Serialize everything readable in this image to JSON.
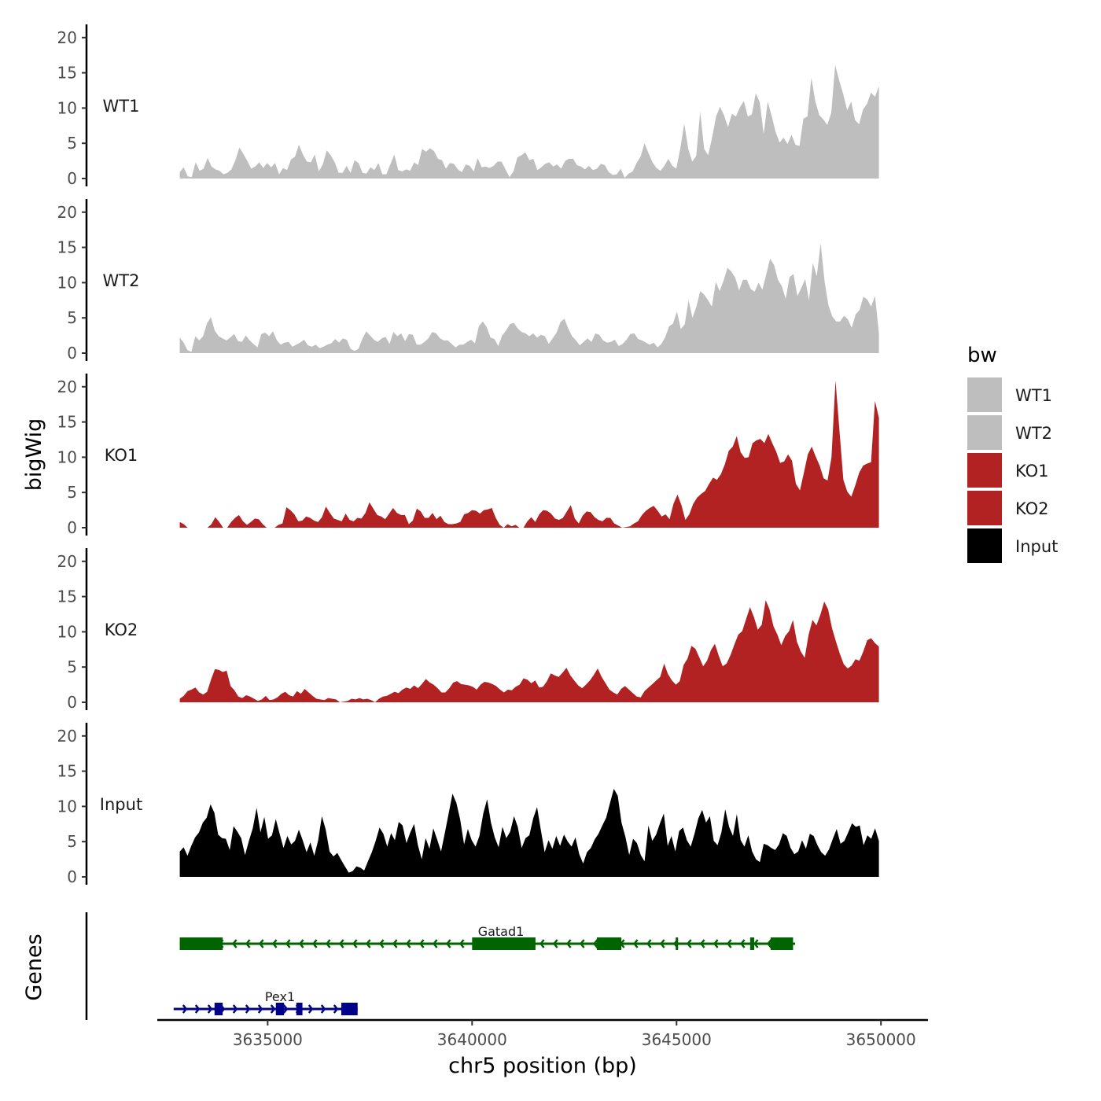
{
  "chart_data": {
    "type": "area",
    "title": "",
    "ylabel": "bigWig",
    "gene_track_label": "Genes",
    "xlabel": "chr5 position (bp)",
    "xlim": [
      3632300,
      3651150
    ],
    "x_ticks": [
      3635000,
      3640000,
      3645000,
      3650000
    ],
    "x_tick_labels": [
      "3635000",
      "3640000",
      "3645000",
      "3650000"
    ],
    "ylim": [
      0,
      21
    ],
    "y_ticks": [
      0,
      5,
      10,
      15,
      20
    ],
    "y_tick_labels": [
      "0",
      "5",
      "10",
      "15",
      "20"
    ],
    "signal_range": [
      3632850,
      3649950
    ],
    "tracks": [
      {
        "name": "WT1",
        "label": "WT1",
        "color": "#bebebe",
        "values": [
          0.9,
          1.6,
          0.3,
          0.2,
          2.3,
          1.1,
          1.4,
          2.9,
          1.7,
          1.3,
          1.1,
          0.6,
          0.8,
          1.3,
          2.6,
          4.4,
          3.5,
          2.5,
          1.4,
          1.7,
          2.3,
          1.5,
          2.2,
          1.6,
          2.2,
          0.6,
          1.5,
          1.2,
          2.7,
          3.1,
          4.8,
          3.4,
          2.4,
          2.3,
          3.4,
          1.0,
          2.0,
          4.0,
          3.3,
          2.3,
          0.8,
          0.8,
          1.8,
          0.8,
          2.6,
          2.2,
          0.8,
          0.7,
          1.6,
          1.2,
          2.2,
          0.6,
          0.6,
          2.0,
          3.4,
          1.2,
          1.0,
          1.3,
          1.1,
          2.3,
          1.9,
          4.2,
          3.8,
          4.3,
          3.9,
          2.8,
          2.6,
          1.4,
          2.2,
          2.1,
          1.3,
          0.9,
          2.0,
          1.8,
          1.0,
          2.9,
          1.6,
          1.7,
          1.5,
          1.8,
          2.4,
          2.4,
          1.3,
          0.2,
          1.0,
          3.0,
          3.3,
          3.7,
          2.6,
          2.8,
          1.2,
          1.6,
          2.1,
          2.3,
          1.7,
          2.0,
          1.4,
          2.5,
          2.8,
          2.8,
          1.9,
          1.7,
          1.3,
          1.8,
          1.2,
          1.4,
          2.1,
          1.9,
          0.9,
          0.5,
          0.6,
          1.4,
          0.1,
          0.7,
          1.0,
          2.2,
          3.1,
          5.0,
          3.6,
          2.3,
          1.5,
          1.1,
          1.8,
          2.8,
          1.8,
          1.4,
          4.3,
          7.8,
          4.2,
          2.4,
          3.2,
          9.5,
          4.2,
          3.3,
          5.8,
          8.8,
          10.2,
          9.0,
          7.3,
          9.2,
          8.8,
          10.1,
          11.0,
          8.8,
          9.1,
          12.1,
          10.8,
          6.3,
          10.9,
          8.9,
          6.6,
          5.1,
          5.8,
          4.9,
          6.2,
          4.8,
          4.6,
          8.5,
          8.8,
          14.3,
          10.9,
          9.0,
          8.4,
          7.6,
          9.3,
          16.1,
          13.9,
          12.0,
          9.7,
          10.9,
          8.3,
          7.7,
          9.8,
          10.6,
          12.2,
          11.6,
          13.1
        ]
      },
      {
        "name": "WT2",
        "label": "WT2",
        "color": "#bebebe",
        "values": [
          2.2,
          1.5,
          0.4,
          0.2,
          2.4,
          1.8,
          2.4,
          4.2,
          5.1,
          3.2,
          2.4,
          2.1,
          1.8,
          2.2,
          2.7,
          1.7,
          1.6,
          2.5,
          1.8,
          1.3,
          0.8,
          2.7,
          2.9,
          2.4,
          3.1,
          1.8,
          1.2,
          1.5,
          1.6,
          0.9,
          1.2,
          1.5,
          1.9,
          1.1,
          0.9,
          1.2,
          0.7,
          0.9,
          1.2,
          1.4,
          2.0,
          1.5,
          2.1,
          1.9,
          0.6,
          0.3,
          0.6,
          2.0,
          3.1,
          2.5,
          1.9,
          1.6,
          2.1,
          2.3,
          1.3,
          3.0,
          2.4,
          2.8,
          1.7,
          2.7,
          2.6,
          1.2,
          1.2,
          1.6,
          2.1,
          3.0,
          2.8,
          2.1,
          1.8,
          1.8,
          1.3,
          0.8,
          1.2,
          1.2,
          1.6,
          1.9,
          1.4,
          3.8,
          4.5,
          3.7,
          2.2,
          2.0,
          1.0,
          2.5,
          3.2,
          4.1,
          4.3,
          3.5,
          3.0,
          2.8,
          2.4,
          2.8,
          2.2,
          2.6,
          2.4,
          1.3,
          2.1,
          2.9,
          4.4,
          4.9,
          3.5,
          2.4,
          1.8,
          1.1,
          1.6,
          2.1,
          1.6,
          2.8,
          2.6,
          1.8,
          1.5,
          1.6,
          1.9,
          1.0,
          1.3,
          1.9,
          2.7,
          2.8,
          2.0,
          1.8,
          1.5,
          1.2,
          1.5,
          0.8,
          1.3,
          2.3,
          3.8,
          4.2,
          5.9,
          3.4,
          4.1,
          7.5,
          5.0,
          6.6,
          8.8,
          8.3,
          7.5,
          6.6,
          10.1,
          8.8,
          10.3,
          12.1,
          11.6,
          10.7,
          8.9,
          10.4,
          10.4,
          9.1,
          8.7,
          10.0,
          9.0,
          11.2,
          13.4,
          12.5,
          10.4,
          9.5,
          7.7,
          10.8,
          11.2,
          8.1,
          9.2,
          10.5,
          7.5,
          12.8,
          10.9,
          15.6,
          10.2,
          6.8,
          5.2,
          4.5,
          4.5,
          5.3,
          4.8,
          3.6,
          5.5,
          6.1,
          8.0,
          7.6,
          6.6,
          8.1,
          2.8
        ]
      },
      {
        "name": "KO1",
        "label": "KO1",
        "color": "#b22222",
        "values": [
          0.8,
          0.5,
          0.0,
          0.0,
          0.0,
          0.0,
          0.0,
          0.0,
          0.5,
          1.5,
          0.8,
          0.0,
          0.0,
          0.8,
          1.4,
          1.8,
          0.9,
          0.4,
          0.8,
          1.3,
          1.2,
          0.5,
          0.0,
          0.0,
          0.0,
          0.4,
          0.6,
          2.9,
          2.5,
          1.9,
          0.9,
          1.0,
          1.6,
          1.4,
          1.0,
          0.8,
          1.5,
          3.0,
          2.1,
          1.3,
          1.1,
          0.9,
          2.0,
          1.1,
          0.9,
          1.4,
          1.3,
          2.1,
          3.6,
          2.7,
          1.8,
          1.6,
          1.2,
          2.0,
          2.8,
          2.1,
          1.8,
          1.8,
          0.5,
          1.0,
          2.7,
          2.3,
          1.4,
          1.4,
          2.1,
          1.2,
          1.7,
          0.8,
          0.5,
          0.5,
          0.6,
          0.8,
          1.9,
          2.1,
          2.5,
          2.4,
          2.0,
          2.5,
          2.6,
          2.8,
          1.4,
          0.4,
          0.0,
          0.5,
          0.2,
          0.4,
          0.0,
          0.0,
          0.9,
          1.5,
          0.8,
          1.9,
          2.5,
          2.4,
          2.0,
          1.3,
          1.1,
          1.4,
          2.3,
          3.2,
          1.3,
          0.6,
          1.7,
          2.3,
          2.2,
          1.5,
          1.1,
          0.9,
          1.4,
          1.4,
          0.6,
          0.3,
          0.0,
          0.1,
          0.2,
          0.6,
          0.9,
          1.8,
          2.4,
          2.8,
          3.1,
          2.4,
          1.6,
          1.9,
          1.2,
          3.4,
          4.7,
          3.2,
          1.1,
          1.9,
          3.4,
          4.3,
          4.8,
          5.2,
          6.2,
          7.1,
          6.8,
          7.6,
          9.0,
          10.9,
          11.5,
          13.0,
          10.7,
          9.9,
          10.0,
          12.0,
          12.4,
          12.6,
          12.0,
          13.3,
          12.0,
          10.8,
          9.2,
          9.4,
          10.4,
          9.5,
          6.2,
          5.3,
          7.8,
          10.4,
          11.5,
          10.1,
          8.8,
          7.0,
          6.7,
          10.0,
          20.9,
          13.8,
          6.8,
          5.1,
          4.4,
          6.0,
          7.8,
          8.8,
          9.1,
          9.3,
          18.0,
          15.6
        ]
      },
      {
        "name": "KO2",
        "label": "KO2",
        "color": "#b22222",
        "values": [
          0.5,
          0.9,
          1.6,
          1.8,
          2.1,
          1.4,
          1.1,
          1.5,
          3.2,
          4.7,
          4.6,
          4.3,
          4.5,
          2.3,
          1.7,
          0.8,
          0.6,
          1.0,
          0.8,
          0.5,
          0.2,
          0.4,
          0.9,
          0.3,
          0.4,
          0.7,
          1.2,
          1.5,
          1.0,
          0.8,
          1.6,
          1.2,
          1.9,
          1.4,
          0.9,
          0.5,
          0.4,
          0.3,
          0.6,
          0.5,
          0.4,
          0.0,
          0.1,
          0.2,
          0.5,
          0.4,
          0.6,
          0.4,
          0.5,
          0.3,
          0.0,
          0.5,
          0.8,
          0.9,
          1.2,
          1.5,
          1.3,
          1.8,
          2.1,
          1.9,
          2.4,
          2.0,
          2.6,
          3.3,
          2.8,
          2.5,
          2.0,
          1.4,
          1.4,
          2.0,
          2.8,
          3.0,
          2.6,
          2.5,
          2.4,
          2.2,
          1.8,
          2.5,
          2.9,
          2.8,
          2.6,
          2.3,
          1.8,
          1.4,
          1.8,
          1.7,
          2.2,
          2.5,
          3.4,
          3.2,
          2.7,
          3.1,
          2.1,
          2.2,
          3.0,
          4.1,
          3.8,
          3.6,
          4.2,
          4.9,
          3.8,
          3.1,
          2.4,
          2.0,
          2.5,
          3.1,
          3.9,
          4.8,
          3.6,
          2.7,
          1.8,
          1.4,
          1.1,
          1.9,
          2.3,
          1.8,
          1.3,
          0.8,
          0.7,
          1.6,
          2.1,
          2.6,
          3.1,
          3.6,
          5.5,
          4.0,
          3.1,
          2.5,
          3.0,
          5.3,
          6.2,
          8.0,
          7.6,
          6.4,
          5.1,
          5.9,
          7.4,
          8.3,
          6.6,
          5.1,
          5.5,
          6.7,
          8.2,
          9.6,
          10.1,
          11.8,
          13.5,
          12.1,
          10.3,
          11.0,
          14.5,
          13.2,
          10.8,
          9.6,
          8.1,
          9.4,
          10.1,
          11.7,
          8.6,
          7.2,
          6.3,
          9.6,
          11.7,
          10.9,
          12.4,
          14.3,
          13.2,
          10.5,
          8.6,
          6.9,
          5.4,
          4.8,
          5.2,
          6.1,
          5.9,
          7.2,
          8.8,
          9.1,
          8.4,
          7.9
        ]
      },
      {
        "name": "Input",
        "label": "Input",
        "color": "#000000",
        "values": [
          3.6,
          4.2,
          3.0,
          4.4,
          5.6,
          6.3,
          7.7,
          8.4,
          10.3,
          9.1,
          6.0,
          5.5,
          5.4,
          3.8,
          7.2,
          6.4,
          5.5,
          3.1,
          5.1,
          6.9,
          9.8,
          6.3,
          8.5,
          5.4,
          5.9,
          8.2,
          6.1,
          4.1,
          5.8,
          4.6,
          5.1,
          6.7,
          5.2,
          3.5,
          4.9,
          3.0,
          5.1,
          8.6,
          6.7,
          3.6,
          2.9,
          3.4,
          2.4,
          1.5,
          0.6,
          0.8,
          1.5,
          1.3,
          0.9,
          2.2,
          3.5,
          5.1,
          7.0,
          6.1,
          4.3,
          6.2,
          5.2,
          7.8,
          7.3,
          4.8,
          6.3,
          7.5,
          4.5,
          2.5,
          5.5,
          4.0,
          6.9,
          5.3,
          3.6,
          6.2,
          9.0,
          11.8,
          10.5,
          8.1,
          4.6,
          6.8,
          5.2,
          4.3,
          5.8,
          9.0,
          11.0,
          7.7,
          5.6,
          4.2,
          7.1,
          5.5,
          6.4,
          8.6,
          7.1,
          4.1,
          5.5,
          5.9,
          8.3,
          9.9,
          6.6,
          3.5,
          5.2,
          4.0,
          5.8,
          4.4,
          6.0,
          5.0,
          4.3,
          5.6,
          3.2,
          1.9,
          3.5,
          4.1,
          5.3,
          6.1,
          7.3,
          8.4,
          10.5,
          12.5,
          11.5,
          7.7,
          5.7,
          3.1,
          5.4,
          4.8,
          3.1,
          2.2,
          7.3,
          5.1,
          6.0,
          7.6,
          9.0,
          4.4,
          5.8,
          3.6,
          6.5,
          7.0,
          5.2,
          4.3,
          6.1,
          8.3,
          9.5,
          7.7,
          8.6,
          5.1,
          4.5,
          6.3,
          9.6,
          7.1,
          5.8,
          8.9,
          5.2,
          4.3,
          5.9,
          3.6,
          2.5,
          2.1,
          4.7,
          4.5,
          4.1,
          3.8,
          4.6,
          6.2,
          5.8,
          4.1,
          3.2,
          3.6,
          5.2,
          4.0,
          6.1,
          5.8,
          4.5,
          3.5,
          3.0,
          3.9,
          5.4,
          6.8,
          4.7,
          5.1,
          6.3,
          7.6,
          7.1,
          7.3,
          4.5,
          5.9,
          5.4,
          6.9,
          5.1
        ]
      }
    ],
    "legend": {
      "title": "bw",
      "position": "right",
      "entries": [
        {
          "label": "WT1",
          "color": "#bebebe"
        },
        {
          "label": "WT2",
          "color": "#bebebe"
        },
        {
          "label": "KO1",
          "color": "#b22222"
        },
        {
          "label": "KO2",
          "color": "#b22222"
        },
        {
          "label": "Input",
          "color": "#000000"
        }
      ]
    },
    "genes": [
      {
        "name": "Gatad1",
        "strand": "-",
        "color": "#006400",
        "start": 3632850,
        "end": 3647900,
        "exons": [
          [
            3632850,
            3633900
          ],
          [
            3640000,
            3641550
          ],
          [
            3643050,
            3643650
          ],
          [
            3644980,
            3645020
          ],
          [
            3646800,
            3646900
          ],
          [
            3647300,
            3647850
          ]
        ]
      },
      {
        "name": "Pex1",
        "strand": "+",
        "color": "#00008b",
        "start": 3632700,
        "end": 3637200,
        "exons": [
          [
            3633700,
            3633900
          ],
          [
            3635200,
            3635400
          ],
          [
            3635700,
            3635850
          ],
          [
            3636800,
            3637200
          ]
        ]
      }
    ]
  }
}
